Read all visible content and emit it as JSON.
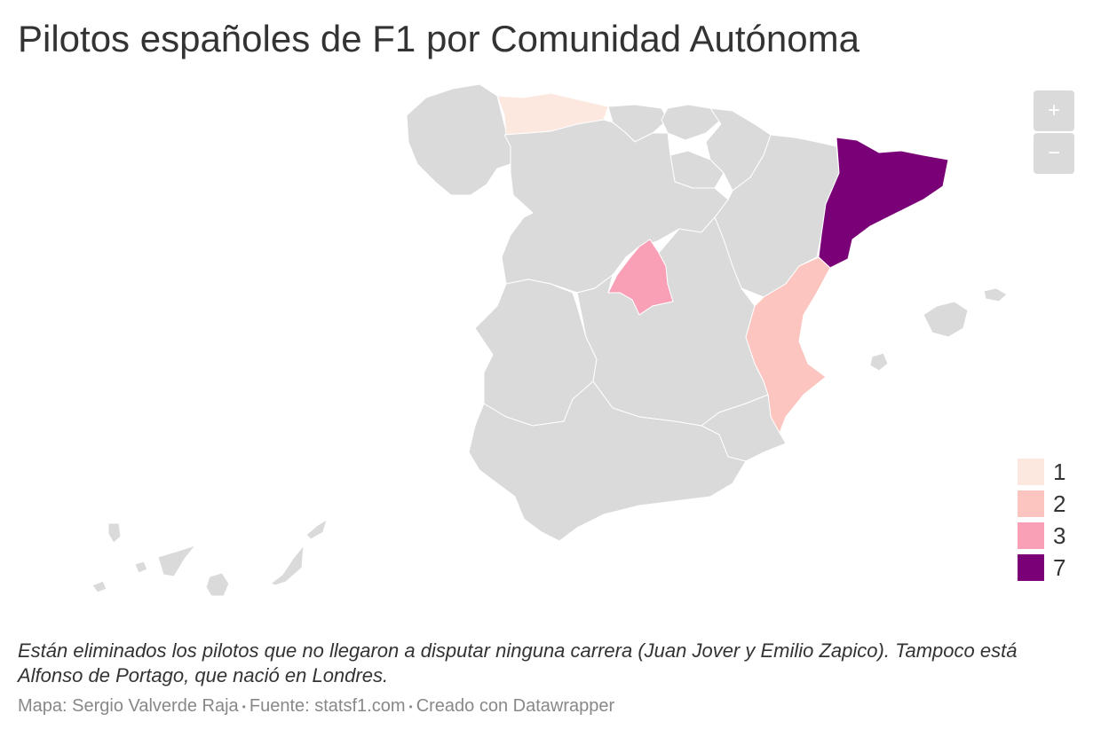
{
  "title": "Pilotos españoles de F1 por Comunidad Autónoma",
  "zoom": {
    "in_label": "+",
    "out_label": "−"
  },
  "colors": {
    "base": "#dadada",
    "c1": "#fde8e0",
    "c2": "#fcc5bf",
    "c3": "#f99fb6",
    "c7": "#7a0077"
  },
  "legend": [
    {
      "label": "1",
      "color": "#fde8e0"
    },
    {
      "label": "2",
      "color": "#fcc5bf"
    },
    {
      "label": "3",
      "color": "#f99fb6"
    },
    {
      "label": "7",
      "color": "#7a0077"
    }
  ],
  "regions": [
    {
      "name": "Asturias",
      "value": 1
    },
    {
      "name": "Comunidad Valenciana",
      "value": 2
    },
    {
      "name": "Madrid",
      "value": 3
    },
    {
      "name": "Cataluña",
      "value": 7
    }
  ],
  "note": "Están eliminados los pilotos que no llegaron a disputar ninguna carrera (Juan Jover y Emilio Zapico). Tampoco está Alfonso de Portago, que nació en Londres.",
  "credits": {
    "map": "Mapa: Sergio Valverde Raja",
    "source": "Fuente: statsf1.com",
    "tool": "Creado con Datawrapper",
    "separator": "•"
  }
}
